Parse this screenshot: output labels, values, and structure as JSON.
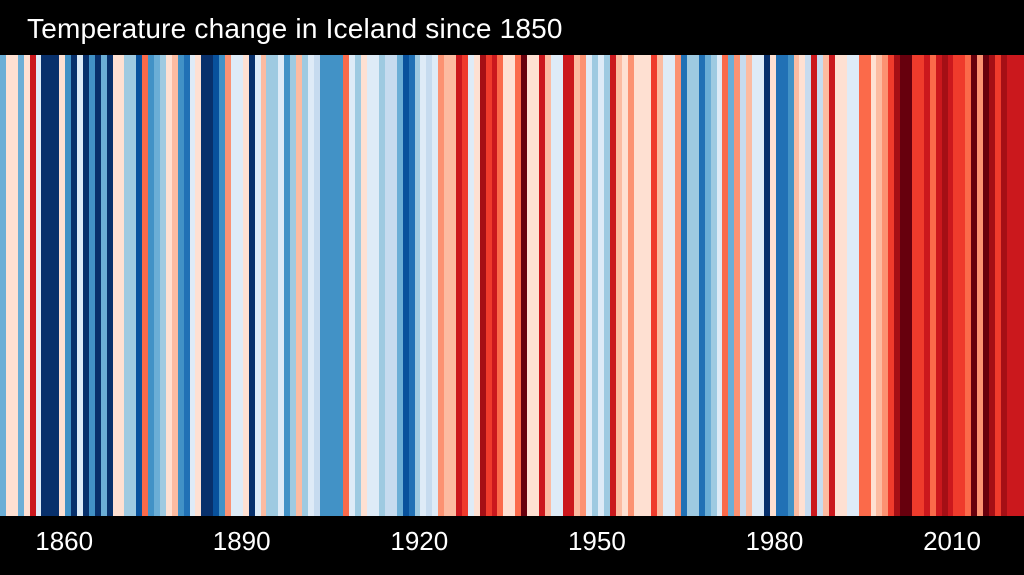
{
  "header": {
    "title": "Temperature change in Iceland since 1850"
  },
  "x_axis": {
    "tick_years": [
      1860,
      1890,
      1920,
      1950,
      1980,
      2010
    ]
  },
  "chart_data": {
    "type": "heatmap",
    "title": "Temperature change in Iceland since 1850",
    "subtitle": "",
    "xlabel": "",
    "ylabel": "",
    "legend": "none",
    "grid": false,
    "description_of_encoding": "warming stripes: one vertical stripe per year, color encodes temperature anomaly (blue = cold, red = warm)",
    "x_range": [
      1850,
      2022
    ],
    "x_tick_labels": [
      "1860",
      "1890",
      "1920",
      "1950",
      "1980",
      "2010"
    ],
    "start_year": 1850,
    "end_year": 2022,
    "palette_cold_to_hot": [
      "#08306b",
      "#08519c",
      "#2171b5",
      "#4292c6",
      "#6baed6",
      "#9ecae1",
      "#c6dbef",
      "#deebf7",
      "#fee0d2",
      "#fcbba1",
      "#fc9272",
      "#fb6a4a",
      "#ef3b2c",
      "#cb181d",
      "#a50f15",
      "#67000d"
    ],
    "background_color": "#000000",
    "text_color": "#ffffff",
    "stripe_colors_by_year": [
      "#6baed6",
      "#fee0d2",
      "#fee0d2",
      "#6baed6",
      "#fee0d2",
      "#cb181d",
      "#deebf7",
      "#08306b",
      "#08306b",
      "#08306b",
      "#fee0d2",
      "#4292c6",
      "#08306b",
      "#deebf7",
      "#08306b",
      "#4292c6",
      "#08306b",
      "#6baed6",
      "#08306b",
      "#fee0d2",
      "#fee0d2",
      "#9ecae1",
      "#9ecae1",
      "#08519c",
      "#fb6a4a",
      "#4292c6",
      "#6baed6",
      "#9ecae1",
      "#fee0d2",
      "#fcbba1",
      "#4292c6",
      "#2171b5",
      "#deebf7",
      "#fee0d2",
      "#08306b",
      "#08306b",
      "#08519c",
      "#4292c6",
      "#fc9272",
      "#deebf7",
      "#deebf7",
      "#fee0d2",
      "#08306b",
      "#deebf7",
      "#fcbba1",
      "#9ecae1",
      "#9ecae1",
      "#deebf7",
      "#4292c6",
      "#9ecae1",
      "#fcbba1",
      "#9ecae1",
      "#deebf7",
      "#c6dbef",
      "#4292c6",
      "#4292c6",
      "#4292c6",
      "#4292c6",
      "#fb6a4a",
      "#deebf7",
      "#9ecae1",
      "#fee0d2",
      "#deebf7",
      "#deebf7",
      "#9ecae1",
      "#c6dbef",
      "#c6dbef",
      "#6baed6",
      "#08519c",
      "#2171b5",
      "#9ecae1",
      "#deebf7",
      "#c6dbef",
      "#deebf7",
      "#fc9272",
      "#fcbba1",
      "#fcbba1",
      "#cb181d",
      "#ef3b2c",
      "#deebf7",
      "#fee0d2",
      "#a50f15",
      "#ef3b2c",
      "#cb181d",
      "#fb6a4a",
      "#fee0d2",
      "#fee0d2",
      "#fb6a4a",
      "#67000d",
      "#fee0d2",
      "#fee0d2",
      "#cb181d",
      "#fcbba1",
      "#deebf7",
      "#deebf7",
      "#cb181d",
      "#cb181d",
      "#fcbba1",
      "#fc9272",
      "#deebf7",
      "#9ecae1",
      "#deebf7",
      "#9ecae1",
      "#cb181d",
      "#fcbba1",
      "#fee0d2",
      "#fc9272",
      "#fee0d2",
      "#fee0d2",
      "#fee0d2",
      "#ef3b2c",
      "#fcbba1",
      "#deebf7",
      "#deebf7",
      "#fc9272",
      "#2171b5",
      "#9ecae1",
      "#9ecae1",
      "#2171b5",
      "#6baed6",
      "#9ecae1",
      "#deebf7",
      "#fb6a4a",
      "#6baed6",
      "#fc9272",
      "#c6dbef",
      "#fcbba1",
      "#deebf7",
      "#deebf7",
      "#08306b",
      "#fee0d2",
      "#2171b5",
      "#2171b5",
      "#4292c6",
      "#fcbba1",
      "#fee0d2",
      "#c6dbef",
      "#cb181d",
      "#c6dbef",
      "#fcbba1",
      "#cb181d",
      "#fee0d2",
      "#fee0d2",
      "#deebf7",
      "#deebf7",
      "#fb6a4a",
      "#fb6a4a",
      "#fee0d2",
      "#fcbba1",
      "#fc9272",
      "#ef3b2c",
      "#a50f15",
      "#67000d",
      "#67000d",
      "#ef3b2c",
      "#ef3b2c",
      "#cb181d",
      "#fb6a4a",
      "#cb181d",
      "#a50f15",
      "#cb181d",
      "#ef3b2c",
      "#ef3b2c",
      "#fb6a4a",
      "#67000d",
      "#fc9272",
      "#67000d",
      "#a50f15",
      "#ef3b2c",
      "#a50f15",
      "#cb181d",
      "#cb181d",
      "#cb181d"
    ]
  }
}
